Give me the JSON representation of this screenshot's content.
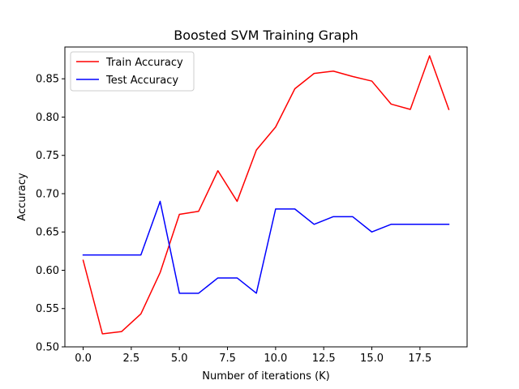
{
  "chart_data": {
    "type": "line",
    "title": "Boosted SVM Training Graph",
    "xlabel": "Number of iterations (K)",
    "ylabel": "Accuracy",
    "xlim": [
      -0.95,
      19.95
    ],
    "ylim": [
      0.5,
      0.8915
    ],
    "xticks": [
      0.0,
      2.5,
      5.0,
      7.5,
      10.0,
      12.5,
      15.0,
      17.5
    ],
    "xtick_labels": [
      "0.0",
      "2.5",
      "5.0",
      "7.5",
      "10.0",
      "12.5",
      "15.0",
      "17.5"
    ],
    "yticks": [
      0.5,
      0.55,
      0.6,
      0.65,
      0.7,
      0.75,
      0.8,
      0.85
    ],
    "ytick_labels": [
      "0.50",
      "0.55",
      "0.60",
      "0.65",
      "0.70",
      "0.75",
      "0.80",
      "0.85"
    ],
    "grid": false,
    "legend": "top-left",
    "x": [
      0,
      1,
      2,
      3,
      4,
      5,
      6,
      7,
      8,
      9,
      10,
      11,
      12,
      13,
      14,
      15,
      16,
      17,
      18,
      19
    ],
    "series": [
      {
        "name": "Train Accuracy",
        "color": "#ff0000",
        "values": [
          0.613,
          0.517,
          0.52,
          0.543,
          0.597,
          0.673,
          0.677,
          0.73,
          0.69,
          0.757,
          0.787,
          0.837,
          0.857,
          0.86,
          0.853,
          0.847,
          0.817,
          0.81,
          0.88,
          0.81
        ]
      },
      {
        "name": "Test Accuracy",
        "color": "#0000ff",
        "values": [
          0.62,
          0.62,
          0.62,
          0.62,
          0.69,
          0.57,
          0.57,
          0.59,
          0.59,
          0.57,
          0.68,
          0.68,
          0.66,
          0.67,
          0.67,
          0.65,
          0.66,
          0.66,
          0.66,
          0.66
        ]
      }
    ]
  }
}
